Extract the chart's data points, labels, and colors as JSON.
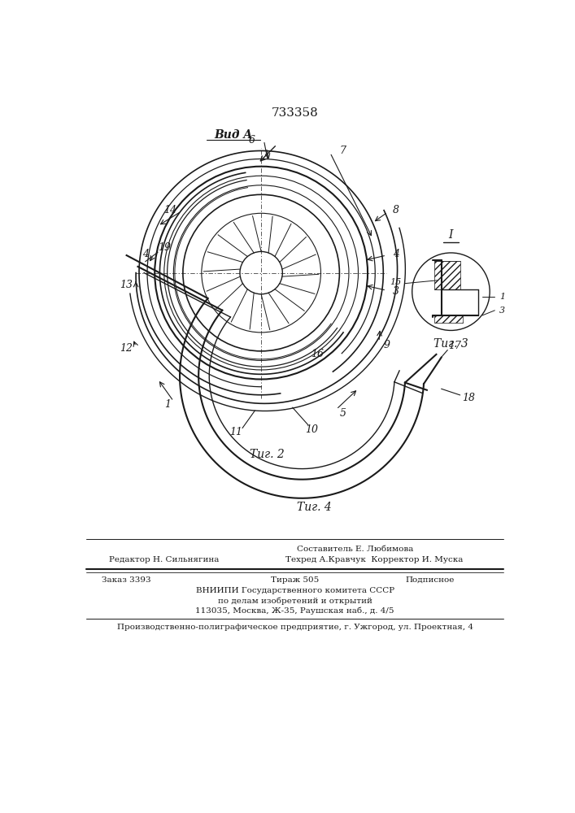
{
  "patent_number": "733358",
  "bg_color": "#ffffff",
  "line_color": "#1a1a1a",
  "view_label": "Вид A",
  "fig2_label": "Τиг. 2",
  "fig3_label": "Τиг. 3",
  "fig4_label": "Τиг. 4",
  "footer_sostavitel": "Составитель Е. Любимова",
  "footer_editor": "Редактор Н. Сильнягина",
  "footer_techred": "Техред А.Кравчук",
  "footer_corrector": "Корректор И. Муска",
  "footer_order": "Заказ 3393",
  "footer_tirazh": "Тираж 505",
  "footer_podpisnoe": "Подписное",
  "footer_vniiipi": "ВНИИПИ Государственного комитета СССР",
  "footer_po_delam": "по делам изобретений и открытий",
  "footer_address": "113035, Москва, Ж-35, Раушская наб., д. 4/5",
  "footer_proizv": "Производственно-полиграфическое предприятие, г. Ужгород, ул. Проектная, 4"
}
